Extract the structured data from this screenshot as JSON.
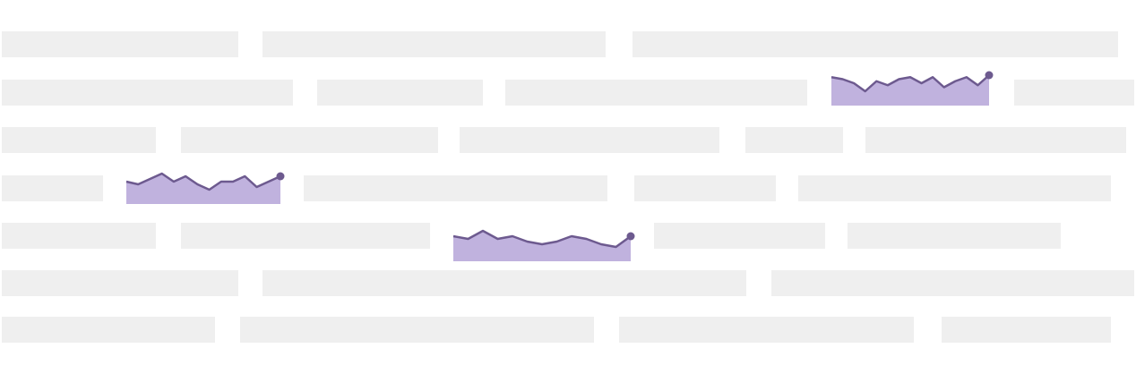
{
  "colors": {
    "placeholder": "#efefef",
    "spark_fill": "#c0b2de",
    "spark_line": "#6d5a8f",
    "background": "#ffffff"
  },
  "sparklines": [
    {
      "name": "sparkline-row-2",
      "values": [
        8,
        7,
        5,
        1,
        6,
        4,
        7,
        8,
        5,
        8,
        3,
        6,
        8,
        4,
        9
      ]
    },
    {
      "name": "sparkline-row-4",
      "values": [
        6,
        5,
        7,
        9,
        6,
        8,
        5,
        3,
        6,
        6,
        8,
        4,
        6,
        8
      ]
    },
    {
      "name": "sparkline-row-5",
      "values": [
        6,
        5,
        8,
        5,
        6,
        4,
        3,
        4,
        6,
        5,
        3,
        2,
        6
      ]
    }
  ]
}
